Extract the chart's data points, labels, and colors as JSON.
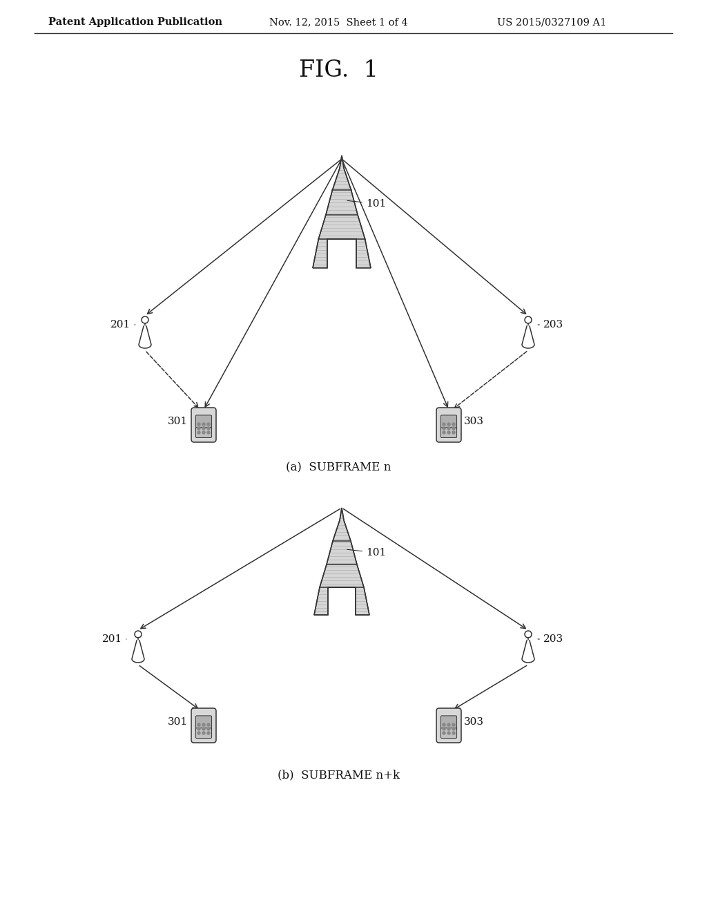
{
  "bg_color": "#ffffff",
  "header_left": "Patent Application Publication",
  "header_mid": "Nov. 12, 2015  Sheet 1 of 4",
  "header_right": "US 2015/0327109 A1",
  "fig_title": "FIG.  1",
  "panel_a_label": "(a)  SUBFRAME n",
  "panel_b_label": "(b)  SUBFRAME n+k",
  "line_color": "#333333",
  "text_color": "#111111",
  "gray_fill": "#c8c8c8",
  "light_gray": "#e0e0e0"
}
